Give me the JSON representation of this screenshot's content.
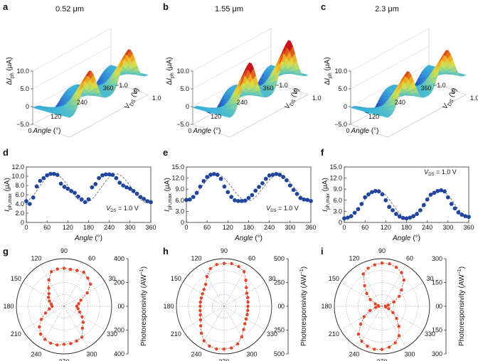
{
  "chart_data": [
    {
      "id": "a",
      "type": "surface3d",
      "panel_label": "a",
      "title": "0.52 μm",
      "xlabel": "Angle (°)",
      "ylabel": "V_DS (V)",
      "zlabel": "ΔI_ph (μA)",
      "x_ticks": [
        "0",
        "120",
        "240",
        "360"
      ],
      "y_ticks": [
        "−1.0",
        "0",
        "1.0"
      ],
      "z_ticks": [
        "−5.0",
        "0",
        "5.0",
        "10.0"
      ],
      "xlim": [
        0,
        360
      ],
      "ylim": [
        -1.0,
        1.0
      ],
      "zlim": [
        -5,
        10
      ],
      "peak_values_uA": [
        [
          90,
          -1.0,
          -3.5
        ],
        [
          90,
          1.0,
          10.2
        ],
        [
          270,
          1.0,
          10.2
        ],
        [
          270,
          -1.0,
          -3.5
        ]
      ]
    },
    {
      "id": "b",
      "type": "surface3d",
      "panel_label": "b",
      "title": "1.55 μm",
      "xlabel": "Angle (°)",
      "ylabel": "V_DS (V)",
      "zlabel": "ΔI_ph (μA)",
      "x_ticks": [
        "0",
        "120",
        "240",
        "360"
      ],
      "y_ticks": [
        "−1.0",
        "0",
        "1.0"
      ],
      "z_ticks": [
        "−5.0",
        "0",
        "5.0",
        "10.0"
      ],
      "xlim": [
        0,
        360
      ],
      "ylim": [
        -1.0,
        1.0
      ],
      "zlim": [
        -5,
        10
      ],
      "peak_values_uA": [
        [
          90,
          -1.0,
          -4.5
        ],
        [
          90,
          1.0,
          12.5
        ],
        [
          270,
          1.0,
          12.8
        ],
        [
          270,
          -1.0,
          -4.5
        ]
      ]
    },
    {
      "id": "c",
      "type": "surface3d",
      "panel_label": "c",
      "title": "2.3 μm",
      "xlabel": "Angle (°)",
      "ylabel": "V_DS (V)",
      "zlabel": "ΔI_ph (μA)",
      "x_ticks": [
        "0",
        "120",
        "240",
        "360"
      ],
      "y_ticks": [
        "−1.0",
        "0",
        "1.0"
      ],
      "z_ticks": [
        "−5.0",
        "0",
        "5.0",
        "10.0"
      ],
      "xlim": [
        0,
        360
      ],
      "ylim": [
        -1.0,
        1.0
      ],
      "zlim": [
        -5,
        10
      ],
      "peak_values_uA": [
        [
          90,
          -1.0,
          -4.5
        ],
        [
          90,
          1.0,
          10.0
        ],
        [
          270,
          1.0,
          10.0
        ],
        [
          270,
          -1.0,
          -4.5
        ]
      ]
    },
    {
      "id": "d",
      "type": "scatter",
      "panel_label": "d",
      "annotation": "V_DS = 1.0 V",
      "xlabel": "Angle (°)",
      "ylabel": "I_ph,max (μA)",
      "x_ticks": [
        "0",
        "60",
        "120",
        "180",
        "240",
        "300",
        "360"
      ],
      "y_ticks": [
        "0",
        "2.0",
        "4.0",
        "6.0",
        "8.0",
        "10.0",
        "12.0"
      ],
      "xlim": [
        0,
        360
      ],
      "ylim": [
        0,
        12
      ],
      "x": [
        0,
        10,
        20,
        30,
        40,
        50,
        60,
        70,
        80,
        90,
        100,
        110,
        120,
        130,
        140,
        150,
        160,
        170,
        180,
        190,
        200,
        210,
        220,
        230,
        240,
        250,
        260,
        270,
        280,
        290,
        300,
        310,
        320,
        330,
        340,
        350,
        360
      ],
      "y": [
        4.6,
        4.0,
        5.4,
        7.8,
        9.0,
        9.6,
        10.2,
        10.5,
        10.5,
        10.3,
        8.4,
        7.7,
        7.3,
        6.8,
        6.4,
        5.6,
        5.0,
        4.4,
        5.0,
        7.6,
        8.3,
        9.6,
        10.2,
        10.4,
        10.4,
        10.3,
        9.6,
        8.6,
        8.0,
        7.6,
        7.3,
        6.8,
        6.2,
        5.5,
        5.1,
        4.6,
        4.4
      ],
      "fit": {
        "mean": 7.4,
        "amplitude": 3.1,
        "peak_angle": 80
      }
    },
    {
      "id": "e",
      "type": "scatter",
      "panel_label": "e",
      "annotation": "V_DS = 1.0 V",
      "xlabel": "Angle (°)",
      "ylabel": "I_ph,max (μA)",
      "x_ticks": [
        "0",
        "60",
        "120",
        "180",
        "240",
        "300",
        "360"
      ],
      "y_ticks": [
        "0",
        "3.0",
        "6.0",
        "9.0",
        "12.0",
        "15.0"
      ],
      "xlim": [
        0,
        360
      ],
      "ylim": [
        0,
        15
      ],
      "x": [
        0,
        10,
        20,
        30,
        40,
        50,
        60,
        70,
        80,
        90,
        100,
        110,
        120,
        130,
        140,
        150,
        160,
        170,
        180,
        190,
        200,
        210,
        220,
        230,
        240,
        250,
        260,
        270,
        280,
        290,
        300,
        310,
        320,
        330,
        340,
        350,
        360
      ],
      "y": [
        6.1,
        6.2,
        6.9,
        8.0,
        9.7,
        11.2,
        12.3,
        12.9,
        13.1,
        12.9,
        11.8,
        9.7,
        8.2,
        6.9,
        6.0,
        5.8,
        5.8,
        5.9,
        6.6,
        7.4,
        8.6,
        9.6,
        10.6,
        11.8,
        12.7,
        12.9,
        13.1,
        12.9,
        12.3,
        11.4,
        10.0,
        8.8,
        7.7,
        6.6,
        6.2,
        6.1,
        5.8
      ],
      "fit": {
        "mean": 9.4,
        "amplitude": 3.6,
        "peak_angle": 87
      }
    },
    {
      "id": "f",
      "type": "scatter",
      "panel_label": "f",
      "annotation": "V_DS = 1.0 V",
      "xlabel": "Angle (°)",
      "ylabel": "I_ph,max (μA)",
      "x_ticks": [
        "0",
        "60",
        "120",
        "180",
        "240",
        "300",
        "360"
      ],
      "y_ticks": [
        "0",
        "3.0",
        "6.0",
        "9.0",
        "12.0",
        "15.0"
      ],
      "xlim": [
        0,
        360
      ],
      "ylim": [
        0,
        15
      ],
      "x": [
        0,
        10,
        20,
        30,
        40,
        50,
        60,
        70,
        80,
        90,
        100,
        110,
        120,
        130,
        140,
        150,
        160,
        170,
        180,
        190,
        200,
        210,
        220,
        230,
        240,
        250,
        260,
        270,
        280,
        290,
        300,
        310,
        320,
        330,
        340,
        350,
        360
      ],
      "y": [
        1.1,
        1.3,
        1.7,
        2.6,
        3.6,
        5.0,
        6.8,
        7.6,
        8.2,
        8.5,
        8.4,
        7.6,
        6.0,
        4.2,
        3.3,
        2.3,
        1.6,
        1.2,
        1.1,
        1.3,
        1.7,
        2.3,
        3.3,
        4.7,
        6.2,
        7.5,
        8.0,
        8.5,
        8.7,
        8.4,
        6.8,
        5.0,
        3.8,
        2.7,
        2.1,
        1.7,
        1.5
      ],
      "fit": {
        "mean": 4.9,
        "amplitude": 3.8,
        "peak_angle": 95
      }
    },
    {
      "id": "g",
      "type": "polar",
      "panel_label": "g",
      "ylabel": "Photoresponsivity (AW⁻¹)",
      "angle_ticks": [
        "0",
        "30",
        "60",
        "90",
        "120",
        "150",
        "180",
        "210",
        "240",
        "270",
        "300",
        "330"
      ],
      "r_ticks": [
        "400",
        "200",
        "0",
        "200",
        "400"
      ],
      "rmax": 400,
      "theta": [
        0,
        10,
        20,
        30,
        40,
        50,
        60,
        70,
        80,
        90,
        100,
        110,
        120,
        130,
        140,
        150,
        160,
        170,
        180,
        190,
        200,
        210,
        220,
        230,
        240,
        250,
        260,
        270,
        280,
        290,
        300,
        310,
        320,
        330,
        340,
        350
      ],
      "r": [
        108,
        125,
        150,
        225,
        290,
        310,
        330,
        320,
        315,
        320,
        318,
        310,
        255,
        200,
        165,
        150,
        130,
        110,
        100,
        125,
        165,
        220,
        270,
        305,
        320,
        330,
        330,
        320,
        318,
        310,
        300,
        240,
        210,
        175,
        140,
        120
      ]
    },
    {
      "id": "h",
      "type": "polar",
      "panel_label": "h",
      "ylabel": "Photoresponsivity (AW⁻¹)",
      "angle_ticks": [
        "0",
        "30",
        "60",
        "90",
        "120",
        "150",
        "180",
        "210",
        "240",
        "270",
        "300",
        "330"
      ],
      "r_ticks": [
        "500",
        "250",
        "0",
        "250",
        "500"
      ],
      "rmax": 500,
      "theta": [
        0,
        10,
        20,
        30,
        40,
        50,
        60,
        70,
        80,
        90,
        100,
        110,
        120,
        130,
        140,
        150,
        160,
        170,
        180,
        190,
        200,
        210,
        220,
        230,
        240,
        250,
        260,
        270,
        280,
        290,
        300,
        310,
        320,
        330,
        340,
        350
      ],
      "r": [
        250,
        255,
        265,
        275,
        305,
        355,
        420,
        445,
        455,
        450,
        445,
        420,
        360,
        300,
        275,
        262,
        255,
        252,
        250,
        255,
        265,
        285,
        320,
        370,
        420,
        445,
        455,
        450,
        445,
        420,
        370,
        320,
        285,
        268,
        258,
        252
      ]
    },
    {
      "id": "i",
      "type": "polar",
      "panel_label": "i",
      "ylabel": "Photoresponsivity (AW⁻¹)",
      "angle_ticks": [
        "0",
        "30",
        "60",
        "90",
        "120",
        "150",
        "180",
        "210",
        "240",
        "270",
        "300",
        "330"
      ],
      "r_ticks": [
        "300",
        "150",
        "0",
        "150",
        "300"
      ],
      "rmax": 300,
      "theta": [
        0,
        10,
        20,
        30,
        40,
        50,
        60,
        70,
        80,
        90,
        100,
        110,
        120,
        130,
        140,
        150,
        160,
        170,
        180,
        190,
        200,
        210,
        220,
        230,
        240,
        250,
        260,
        270,
        280,
        290,
        300,
        310,
        320,
        330,
        340,
        350
      ],
      "r": [
        22,
        40,
        80,
        125,
        160,
        215,
        245,
        262,
        272,
        272,
        265,
        255,
        235,
        170,
        125,
        85,
        45,
        24,
        20,
        40,
        80,
        130,
        175,
        230,
        255,
        268,
        275,
        272,
        262,
        245,
        215,
        165,
        120,
        80,
        45,
        24
      ]
    }
  ]
}
